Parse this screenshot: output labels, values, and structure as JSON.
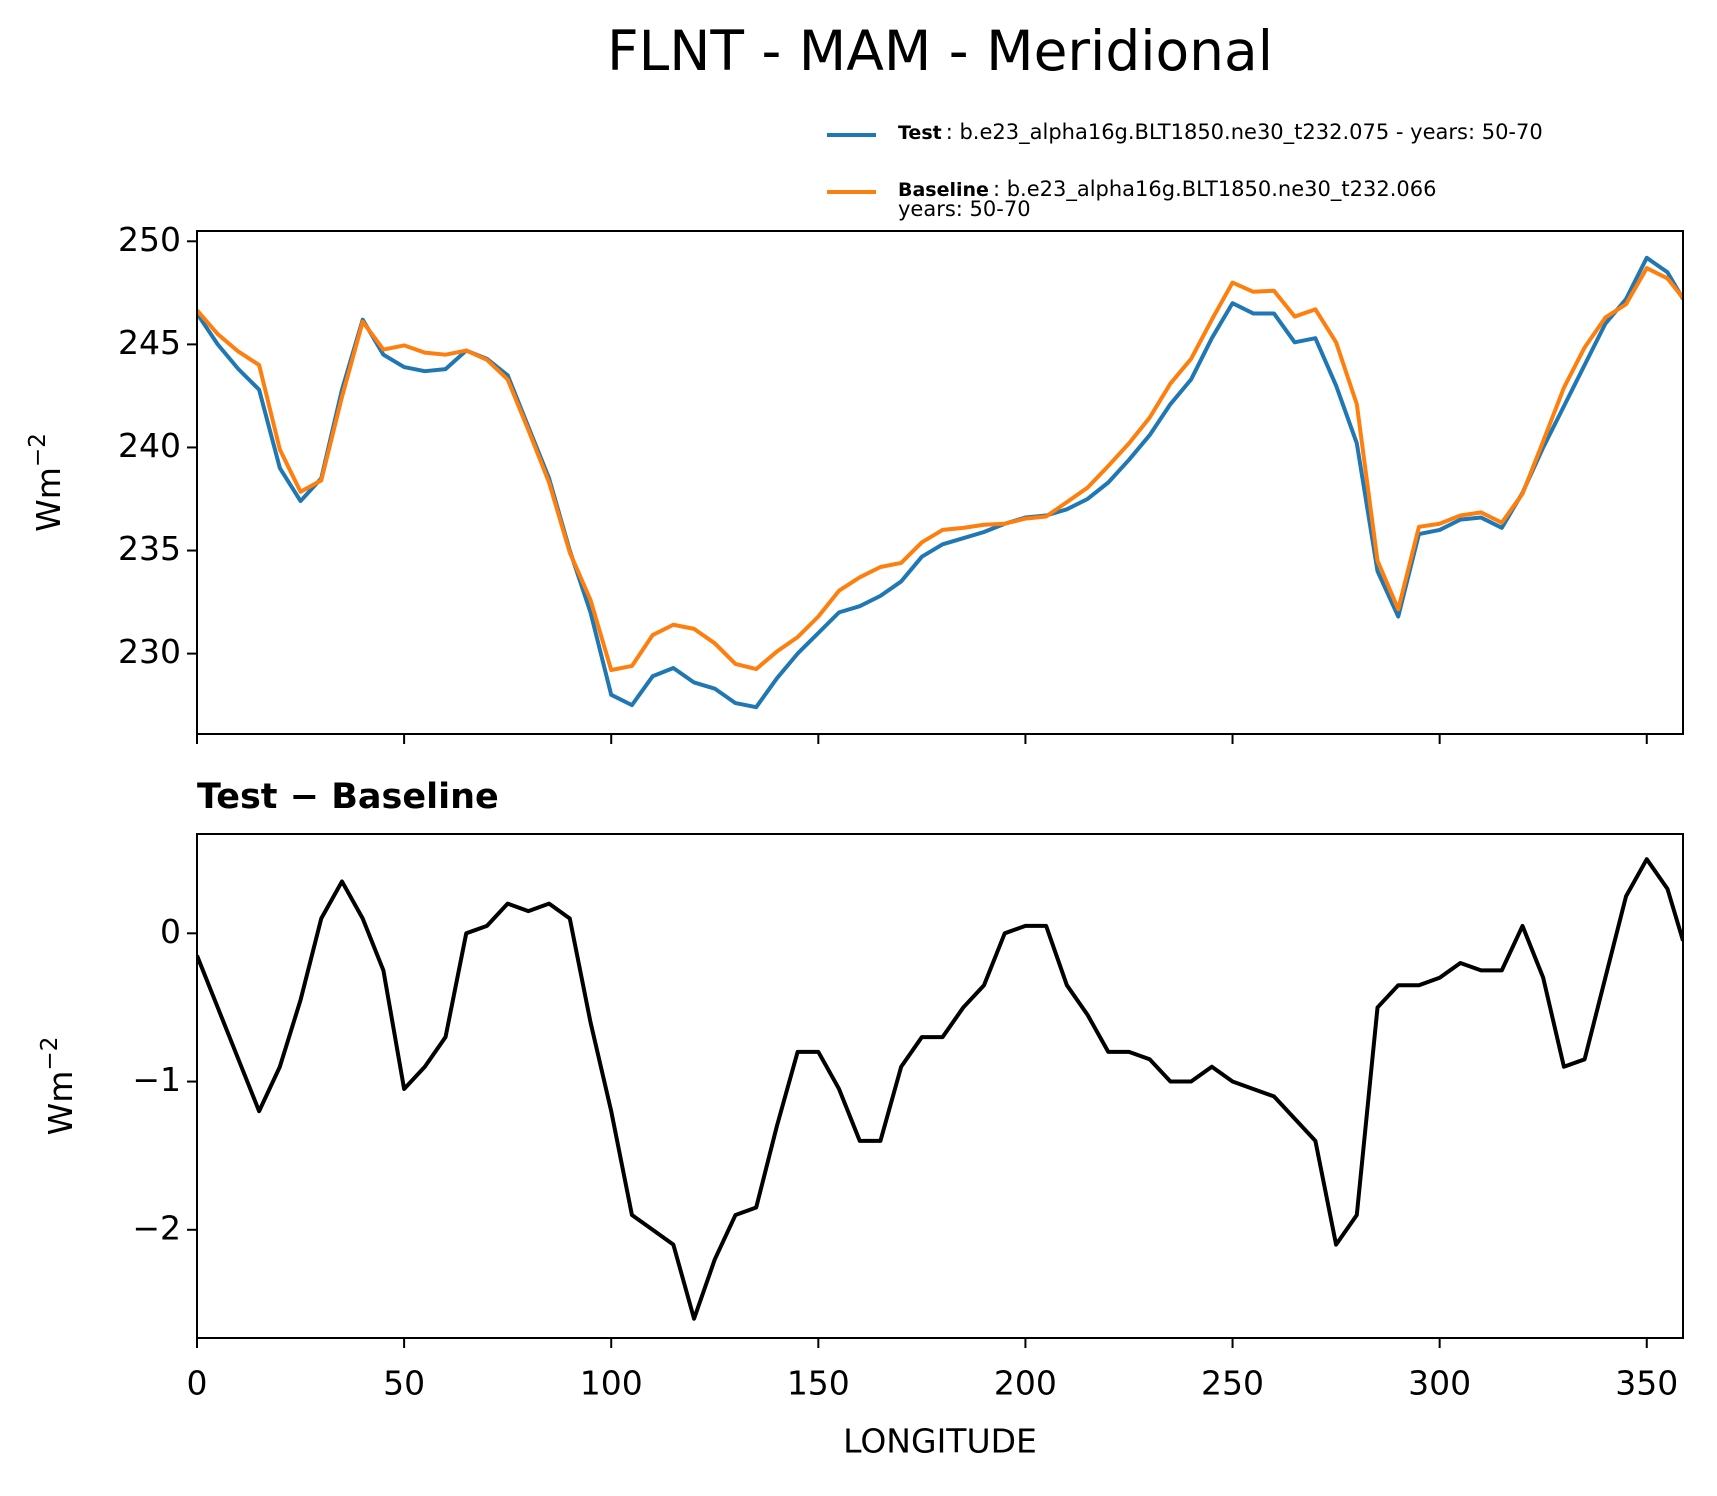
{
  "chart_data": [
    {
      "type": "line",
      "title": "FLNT - MAM - Meridional",
      "ylabel": {
        "base": "Wm",
        "sup": "−2"
      },
      "x": [
        0,
        5,
        10,
        15,
        20,
        25,
        30,
        35,
        40,
        45,
        50,
        55,
        60,
        65,
        70,
        75,
        80,
        85,
        90,
        95,
        100,
        105,
        110,
        115,
        120,
        125,
        130,
        135,
        140,
        145,
        150,
        155,
        160,
        165,
        170,
        175,
        180,
        185,
        190,
        195,
        200,
        205,
        210,
        215,
        220,
        225,
        230,
        235,
        240,
        245,
        250,
        255,
        260,
        265,
        270,
        275,
        280,
        285,
        290,
        295,
        300,
        305,
        310,
        315,
        320,
        325,
        330,
        335,
        340,
        345,
        350,
        355,
        358.75
      ],
      "series": [
        {
          "name": "Test",
          "description": ": b.e23_alpha16g.BLT1850.ne30_t232.075 - years: 50-70",
          "color": "#1f77b4",
          "values": [
            246.5,
            245,
            243.8,
            242.8,
            239,
            237.4,
            238.5,
            242.8,
            246.2,
            244.5,
            243.9,
            243.7,
            243.8,
            244.7,
            244.3,
            243.5,
            241,
            238.5,
            235,
            232,
            228,
            227.5,
            228.9,
            229.3,
            228.6,
            228.3,
            227.6,
            227.4,
            228.8,
            230,
            231,
            232,
            232.3,
            232.8,
            233.5,
            234.7,
            235.3,
            235.6,
            235.9,
            236.3,
            236.6,
            236.7,
            237,
            237.5,
            238.3,
            239.4,
            240.6,
            242.1,
            243.3,
            245.3,
            247,
            246.5,
            246.5,
            245.1,
            245.3,
            243,
            240.2,
            234,
            231.8,
            235.8,
            236,
            236.5,
            236.6,
            236.1,
            237.8,
            240,
            242,
            244,
            246,
            247.2,
            249.2,
            248.5,
            247.2
          ]
        },
        {
          "name": "Baseline",
          "description": ": b.e23_alpha16g.BLT1850.ne30_t232.066",
          "description2": "years: 50-70",
          "color": "#ff7f0e",
          "values": [
            246.65,
            245.5,
            244.65,
            244,
            239.9,
            237.85,
            238.4,
            242.45,
            246.1,
            244.75,
            244.95,
            244.6,
            244.5,
            244.7,
            244.25,
            243.3,
            240.85,
            238.3,
            234.9,
            232.6,
            229.2,
            229.4,
            230.9,
            231.4,
            231.2,
            230.5,
            229.5,
            229.25,
            230.1,
            230.8,
            231.8,
            233.05,
            233.7,
            234.2,
            234.4,
            235.4,
            236,
            236.1,
            236.25,
            236.3,
            236.55,
            236.65,
            237.35,
            238.05,
            239.1,
            240.2,
            241.45,
            243.1,
            244.3,
            246.2,
            248,
            247.55,
            247.6,
            246.35,
            246.7,
            245.1,
            242.1,
            234.5,
            232.15,
            236.15,
            236.3,
            236.7,
            236.85,
            236.35,
            237.75,
            240.3,
            242.9,
            244.85,
            246.3,
            246.95,
            248.7,
            248.2,
            247.25
          ]
        }
      ],
      "xlim": [
        0,
        358.75
      ],
      "xticks": [
        0,
        50,
        100,
        150,
        200,
        250,
        300,
        350
      ],
      "xtick_labels": false,
      "ylim": [
        226.1,
        250.5
      ],
      "yticks": [
        230,
        235,
        240,
        245,
        250
      ],
      "legend": "upper right"
    },
    {
      "type": "line",
      "subtitle": "Test − Baseline",
      "xlabel": "LONGITUDE",
      "ylabel": {
        "base": "Wm",
        "sup": "−2"
      },
      "x": [
        0,
        5,
        10,
        15,
        20,
        25,
        30,
        35,
        40,
        45,
        50,
        55,
        60,
        65,
        70,
        75,
        80,
        85,
        90,
        95,
        100,
        105,
        110,
        115,
        120,
        125,
        130,
        135,
        140,
        145,
        150,
        155,
        160,
        165,
        170,
        175,
        180,
        185,
        190,
        195,
        200,
        205,
        210,
        215,
        220,
        225,
        230,
        235,
        240,
        245,
        250,
        255,
        260,
        265,
        270,
        275,
        280,
        285,
        290,
        295,
        300,
        305,
        310,
        315,
        320,
        325,
        330,
        335,
        340,
        345,
        350,
        355,
        358.75
      ],
      "series": [
        {
          "color": "#000000",
          "values": [
            -0.15,
            -0.5,
            -0.85,
            -1.2,
            -0.9,
            -0.45,
            0.1,
            0.35,
            0.1,
            -0.25,
            -1.05,
            -0.9,
            -0.7,
            0,
            0.05,
            0.2,
            0.15,
            0.2,
            0.1,
            -0.6,
            -1.2,
            -1.9,
            -2,
            -2.1,
            -2.6,
            -2.2,
            -1.9,
            -1.85,
            -1.3,
            -0.8,
            -0.8,
            -1.05,
            -1.4,
            -1.4,
            -0.9,
            -0.7,
            -0.7,
            -0.5,
            -0.35,
            0,
            0.05,
            0.05,
            -0.35,
            -0.55,
            -0.8,
            -0.8,
            -0.85,
            -1,
            -1,
            -0.9,
            -1,
            -1.05,
            -1.1,
            -1.25,
            -1.4,
            -2.1,
            -1.9,
            -0.5,
            -0.35,
            -0.35,
            -0.3,
            -0.2,
            -0.25,
            -0.25,
            0.05,
            -0.3,
            -0.9,
            -0.85,
            -0.3,
            0.25,
            0.5,
            0.3,
            -0.05
          ]
        }
      ],
      "xlim": [
        0,
        358.75
      ],
      "xticks": [
        0,
        50,
        100,
        150,
        200,
        250,
        300,
        350
      ],
      "xtick_labels": true,
      "ylim": [
        -2.73,
        0.67
      ],
      "yticks": [
        {
          "value": -2,
          "label": "−2"
        },
        {
          "value": -1,
          "label": "−1"
        },
        0
      ]
    }
  ]
}
